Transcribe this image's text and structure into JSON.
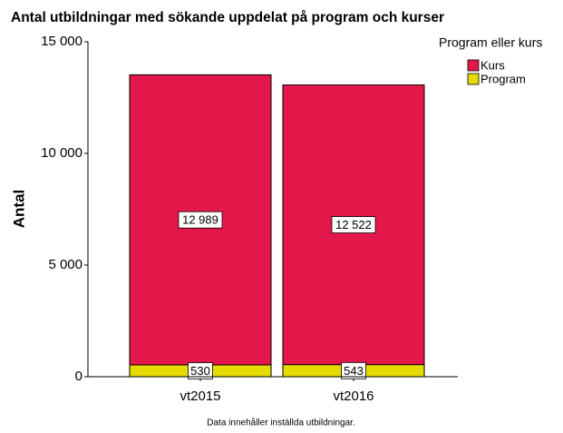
{
  "chart_data": {
    "type": "stacked_bar",
    "title": "Antal utbildningar  med sökande uppdelat på program och kurser",
    "ylabel": "Antal",
    "legend_title": "Program eller kurs",
    "footnote": "Data innehåller inställda utbildningar.",
    "categories": [
      "vt2015",
      "vt2016"
    ],
    "series": [
      {
        "name": "Program",
        "color": "#e6db00",
        "values": [
          530,
          543
        ],
        "value_labels": [
          "530",
          "543"
        ]
      },
      {
        "name": "Kurs",
        "color": "#e4174a",
        "values": [
          12989,
          12522
        ],
        "value_labels": [
          "12 989",
          "12 522"
        ]
      }
    ],
    "ylim": [
      0,
      15000
    ],
    "yticks": [
      0,
      {
        "value": 5000,
        "label": "5 000"
      },
      {
        "value": 10000,
        "label": "10 000"
      },
      {
        "value": 15000,
        "label": "15 000"
      }
    ],
    "legend": "top-right"
  }
}
